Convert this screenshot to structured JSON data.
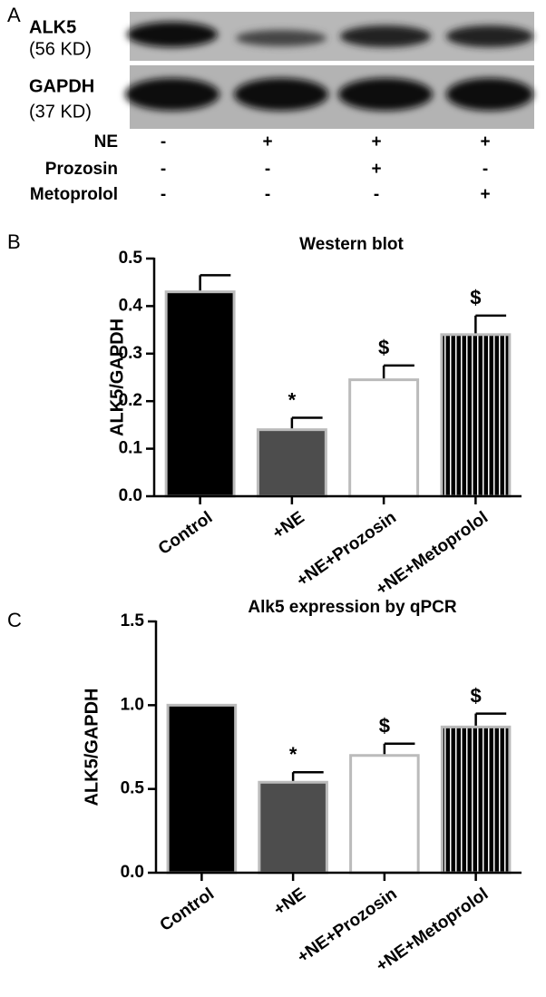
{
  "panel_a": {
    "label": "A",
    "bands": [
      {
        "name": "ALK5",
        "size": "(56 KD)"
      },
      {
        "name": "GAPDH",
        "size": "(37 KD)"
      }
    ],
    "treatments": [
      {
        "name": "NE",
        "marks": [
          "-",
          "+",
          "+",
          "+"
        ]
      },
      {
        "name": "Prozosin",
        "marks": [
          "-",
          "-",
          "+",
          "-"
        ]
      },
      {
        "name": "Metoprolol",
        "marks": [
          "-",
          "-",
          "-",
          "+"
        ]
      }
    ]
  },
  "chart_data": [
    {
      "panel": "B",
      "type": "bar",
      "title": "Western blot",
      "ylabel": "ALK5/GAPDH",
      "categories": [
        "Control",
        "+NE",
        "+NE+Prozosin",
        "+NE+Metoprolol"
      ],
      "values": [
        0.43,
        0.14,
        0.245,
        0.34
      ],
      "errors": [
        0.035,
        0.025,
        0.03,
        0.04
      ],
      "annotations": [
        null,
        "*",
        "$",
        "$"
      ],
      "colors": [
        "#000000",
        "#4d4d4d",
        "#ffffff",
        "#000000"
      ],
      "patterns": [
        null,
        null,
        null,
        "vertical-stripes"
      ],
      "ylim": [
        0,
        0.5
      ],
      "yticks": [
        {
          "value": 0,
          "label": "0.0"
        },
        0.1,
        0.2,
        0.3,
        0.4,
        0.5
      ]
    },
    {
      "panel": "C",
      "type": "bar",
      "title": "Alk5 expression by qPCR",
      "ylabel": "ALK5/GAPDH",
      "categories": [
        "Control",
        "+NE",
        "+NE+Prozosin",
        "+NE+Metoprolol"
      ],
      "values": [
        1.0,
        0.54,
        0.7,
        0.87
      ],
      "errors": [
        null,
        0.06,
        0.07,
        0.08
      ],
      "annotations": [
        null,
        "*",
        "$",
        "$"
      ],
      "colors": [
        "#000000",
        "#4d4d4d",
        "#ffffff",
        "#000000"
      ],
      "patterns": [
        null,
        null,
        null,
        "vertical-stripes"
      ],
      "ylim": [
        0,
        1.5
      ],
      "yticks": [
        {
          "value": 0,
          "label": "0.0"
        },
        0.5,
        {
          "value": 1,
          "label": "1.0"
        },
        1.5
      ]
    }
  ]
}
